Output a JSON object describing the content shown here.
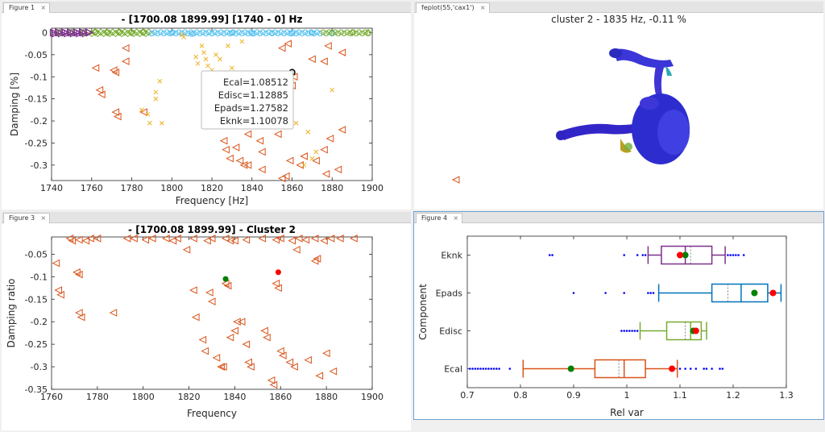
{
  "tabs": {
    "fig1": "Figure 1",
    "fig2": "feplot(55,'cax1')",
    "fig3": "Figure 3",
    "fig4": "Figure 4",
    "close": "×"
  },
  "colors": {
    "orange_tri": "#d95319",
    "yellow_x": "#edb120",
    "blue": "#4dbeee",
    "green": "#77ac30",
    "purple": "#7e2f8e",
    "box_blue": "#0072bd",
    "red_dot": "#ff0000",
    "green_dot": "#008000"
  },
  "fig1": {
    "title": "- [1700.08 1899.99] [1740 - 0] Hz",
    "xlabel": "Frequency [Hz]",
    "ylabel": "Damping [%]",
    "xticks": [
      "1740",
      "1760",
      "1780",
      "1800",
      "1820",
      "1840",
      "1860",
      "1880",
      "1900"
    ],
    "yticks": [
      "0",
      "-0.05",
      "-0.1",
      "-0.15",
      "-0.2",
      "-0.25",
      "-0.3"
    ],
    "tooltip": [
      "Ecal=1.08512",
      "Edisc=1.12885",
      "Epads=1.27582",
      "Eknk=1.10078"
    ]
  },
  "fig2": {
    "title": "cluster  2 - 1835 Hz, -0.11 %",
    "icons": {
      "model": "turbine-mesh-icon",
      "marker": "triangle-marker-icon"
    }
  },
  "fig3": {
    "title": "- [1700.08 1899.99] - Cluster 2",
    "xlabel": "Frequency",
    "ylabel": "Damping ratio",
    "xticks": [
      "1760",
      "1780",
      "1800",
      "1820",
      "1840",
      "1860",
      "1880",
      "1900"
    ],
    "yticks": [
      "-0.05",
      "-0.1",
      "-0.15",
      "-0.2",
      "-0.25",
      "-0.3",
      "-0.35"
    ]
  },
  "fig4": {
    "xlabel": "Rel var",
    "ylabel": "Component",
    "xticks": [
      "0.7",
      "0.8",
      "0.9",
      "1",
      "1.1",
      "1.2",
      "1.3"
    ],
    "categories": [
      "Eknk",
      "Epads",
      "Edisc",
      "Ecal"
    ]
  },
  "chart_data": [
    {
      "type": "scatter",
      "title": "- [1700.08 1899.99] [1740 - 0] Hz",
      "xlabel": "Frequency [Hz]",
      "ylabel": "Damping [%]",
      "xlim": [
        1740,
        1900
      ],
      "ylim": [
        -0.335,
        0.01
      ],
      "grid": false,
      "series": [
        {
          "marker": "triangle-left",
          "color": "#d95319",
          "points": [
            [
              1762,
              -0.08
            ],
            [
              1764,
              -0.13
            ],
            [
              1765,
              -0.14
            ],
            [
              1771,
              -0.085
            ],
            [
              1772,
              -0.09
            ],
            [
              1772,
              -0.18
            ],
            [
              1773,
              -0.19
            ],
            [
              1777,
              -0.035
            ],
            [
              1777,
              -0.065
            ],
            [
              1786,
              -0.18
            ],
            [
              1826,
              -0.245
            ],
            [
              1827,
              -0.265
            ],
            [
              1829,
              -0.285
            ],
            [
              1830,
              -0.155
            ],
            [
              1832,
              -0.26
            ],
            [
              1834,
              -0.29
            ],
            [
              1836,
              -0.3
            ],
            [
              1838,
              -0.3
            ],
            [
              1838,
              -0.23
            ],
            [
              1841,
              -0.11
            ],
            [
              1843,
              -0.2
            ],
            [
              1844,
              -0.245
            ],
            [
              1845,
              -0.27
            ],
            [
              1845,
              -0.31
            ],
            [
              1853,
              -0.2
            ],
            [
              1853,
              -0.23
            ],
            [
              1855,
              -0.33
            ],
            [
              1857,
              -0.325
            ],
            [
              1858,
              -0.13
            ],
            [
              1859,
              -0.29
            ],
            [
              1860,
              -0.12
            ],
            [
              1861,
              -0.1
            ],
            [
              1864,
              -0.3
            ],
            [
              1866,
              -0.28
            ],
            [
              1872,
              -0.29
            ],
            [
              1876,
              -0.265
            ],
            [
              1877,
              -0.32
            ],
            [
              1879,
              -0.24
            ],
            [
              1883,
              -0.31
            ],
            [
              1885,
              -0.22
            ],
            [
              1858,
              -0.025
            ],
            [
              1870,
              -0.06
            ],
            [
              1876,
              -0.065
            ],
            [
              1878,
              -0.03
            ],
            [
              1885,
              -0.045
            ],
            [
              1855,
              -0.035
            ]
          ]
        },
        {
          "marker": "x",
          "color": "#edb120",
          "points": [
            [
              1785,
              -0.175
            ],
            [
              1788,
              -0.185
            ],
            [
              1789,
              -0.205
            ],
            [
              1792,
              -0.135
            ],
            [
              1792,
              -0.15
            ],
            [
              1794,
              -0.11
            ],
            [
              1795,
              -0.205
            ],
            [
              1812,
              -0.055
            ],
            [
              1813,
              -0.07
            ],
            [
              1815,
              -0.03
            ],
            [
              1816,
              -0.045
            ],
            [
              1817,
              -0.06
            ],
            [
              1818,
              -0.075
            ],
            [
              1820,
              -0.085
            ],
            [
              1822,
              -0.05
            ],
            [
              1824,
              -0.06
            ],
            [
              1826,
              -0.09
            ],
            [
              1828,
              -0.03
            ],
            [
              1830,
              -0.08
            ],
            [
              1805,
              -0.005
            ],
            [
              1806,
              -0.01
            ],
            [
              1835,
              -0.02
            ],
            [
              1862,
              -0.205
            ],
            [
              1866,
              -0.3
            ],
            [
              1870,
              -0.285
            ],
            [
              1872,
              -0.27
            ],
            [
              1880,
              -0.13
            ],
            [
              1868,
              -0.225
            ]
          ]
        },
        {
          "marker": "circle",
          "color": "#4dbeee",
          "points": [
            [
              1790,
              -0.002
            ],
            [
              1800,
              -0.001
            ],
            [
              1810,
              -0.003
            ],
            [
              1820,
              -0.002
            ],
            [
              1830,
              -0.001
            ],
            [
              1840,
              -0.002
            ],
            [
              1850,
              -0.001
            ],
            [
              1860,
              -0.002
            ],
            [
              1870,
              -0.001
            ],
            [
              1880,
              -0.002
            ]
          ]
        },
        {
          "marker": "diamond",
          "color": "#77ac30",
          "points": [
            [
              1744,
              0.0
            ],
            [
              1750,
              0.001
            ],
            [
              1756,
              0.0
            ],
            [
              1762,
              0.001
            ],
            [
              1768,
              0.0
            ],
            [
              1774,
              0.001
            ],
            [
              1780,
              0.0
            ],
            [
              1786,
              0.001
            ],
            [
              1880,
              0.0
            ],
            [
              1890,
              0.0
            ],
            [
              1898,
              0.0
            ]
          ]
        },
        {
          "marker": "triangle-right",
          "color": "#7e2f8e",
          "points": [
            [
              1741,
              0.0
            ],
            [
              1744,
              0.0
            ],
            [
              1747,
              0.0
            ],
            [
              1750,
              0.0
            ],
            [
              1753,
              0.0
            ],
            [
              1756,
              0.0
            ],
            [
              1759,
              0.0
            ]
          ]
        },
        {
          "marker": "selected-circle",
          "color": "#000000",
          "points": [
            [
              1860,
              -0.09
            ]
          ]
        }
      ]
    },
    {
      "type": "scatter",
      "title": "- [1700.08 1899.99] - Cluster 2",
      "xlabel": "Frequency",
      "ylabel": "Damping ratio",
      "xlim": [
        1760,
        1900
      ],
      "ylim": [
        -0.35,
        -0.02
      ],
      "grid": false,
      "series": [
        {
          "marker": "triangle-left",
          "color": "#d95319",
          "points": [
            [
              1768,
              -0.015
            ],
            [
              1769,
              -0.02
            ],
            [
              1772,
              -0.018
            ],
            [
              1775,
              -0.02
            ],
            [
              1777,
              -0.015
            ],
            [
              1780,
              -0.015
            ],
            [
              1793,
              -0.015
            ],
            [
              1796,
              -0.015
            ],
            [
              1801,
              -0.018
            ],
            [
              1804,
              -0.015
            ],
            [
              1810,
              -0.015
            ],
            [
              1813,
              -0.02
            ],
            [
              1815,
              -0.015
            ],
            [
              1822,
              -0.015
            ],
            [
              1828,
              -0.02
            ],
            [
              1830,
              -0.015
            ],
            [
              1836,
              -0.015
            ],
            [
              1838,
              -0.02
            ],
            [
              1840,
              -0.02
            ],
            [
              1845,
              -0.018
            ],
            [
              1852,
              -0.015
            ],
            [
              1858,
              -0.018
            ],
            [
              1860,
              -0.015
            ],
            [
              1865,
              -0.02
            ],
            [
              1868,
              -0.015
            ],
            [
              1871,
              -0.018
            ],
            [
              1875,
              -0.015
            ],
            [
              1879,
              -0.02
            ],
            [
              1882,
              -0.015
            ],
            [
              1886,
              -0.015
            ],
            [
              1892,
              -0.015
            ],
            [
              1762,
              -0.07
            ],
            [
              1763,
              -0.13
            ],
            [
              1764,
              -0.14
            ],
            [
              1771,
              -0.09
            ],
            [
              1772,
              -0.095
            ],
            [
              1772,
              -0.18
            ],
            [
              1773,
              -0.19
            ],
            [
              1787,
              -0.18
            ],
            [
              1819,
              -0.04
            ],
            [
              1822,
              -0.13
            ],
            [
              1823,
              -0.19
            ],
            [
              1826,
              -0.24
            ],
            [
              1827,
              -0.265
            ],
            [
              1829,
              -0.135
            ],
            [
              1830,
              -0.155
            ],
            [
              1832,
              -0.28
            ],
            [
              1834,
              -0.3
            ],
            [
              1835,
              -0.3
            ],
            [
              1836,
              -0.115
            ],
            [
              1837,
              -0.12
            ],
            [
              1838,
              -0.235
            ],
            [
              1840,
              -0.22
            ],
            [
              1841,
              -0.2
            ],
            [
              1843,
              -0.2
            ],
            [
              1845,
              -0.25
            ],
            [
              1846,
              -0.29
            ],
            [
              1847,
              -0.3
            ],
            [
              1853,
              -0.22
            ],
            [
              1854,
              -0.235
            ],
            [
              1856,
              -0.33
            ],
            [
              1857,
              -0.34
            ],
            [
              1858,
              -0.115
            ],
            [
              1859,
              -0.125
            ],
            [
              1860,
              -0.265
            ],
            [
              1861,
              -0.275
            ],
            [
              1864,
              -0.29
            ],
            [
              1866,
              -0.3
            ],
            [
              1867,
              -0.04
            ],
            [
              1872,
              -0.285
            ],
            [
              1875,
              -0.065
            ],
            [
              1876,
              -0.06
            ],
            [
              1877,
              -0.32
            ],
            [
              1880,
              -0.27
            ],
            [
              1883,
              -0.31
            ]
          ]
        },
        {
          "marker": "filled-circle",
          "color": "#008000",
          "points": [
            [
              1836,
              -0.105
            ]
          ]
        },
        {
          "marker": "filled-circle",
          "color": "#ff0000",
          "points": [
            [
              1859,
              -0.09
            ]
          ]
        }
      ]
    },
    {
      "type": "boxplot",
      "xlabel": "Rel var",
      "ylabel": "Component",
      "xlim": [
        0.7,
        1.3
      ],
      "categories": [
        "Eknk",
        "Epads",
        "Edisc",
        "Ecal"
      ],
      "boxes": [
        {
          "name": "Eknk",
          "color": "#7e2f8e",
          "whisker_low": 1.04,
          "q1": 1.065,
          "median": 1.11,
          "q3": 1.16,
          "whisker_high": 1.185,
          "mean": 1.12,
          "outliers": [
            0.855,
            0.86,
            0.995,
            1.02,
            1.03,
            1.035,
            1.19,
            1.195,
            1.2,
            1.205,
            1.21,
            1.22
          ],
          "red": 1.1,
          "green": 1.11
        },
        {
          "name": "Epads",
          "color": "#0072bd",
          "whisker_low": 1.06,
          "q1": 1.16,
          "median": 1.215,
          "q3": 1.265,
          "whisker_high": 1.29,
          "mean": 1.19,
          "outliers": [
            0.9,
            0.96,
            0.995,
            1.04,
            1.045,
            1.05
          ],
          "red": 1.275,
          "green": 1.24
        },
        {
          "name": "Edisc",
          "color": "#77ac30",
          "whisker_low": 1.025,
          "q1": 1.075,
          "median": 1.12,
          "q3": 1.14,
          "whisker_high": 1.15,
          "mean": 1.11,
          "outliers": [
            0.99,
            0.995,
            1.0,
            1.005,
            1.01,
            1.015,
            1.02
          ],
          "red": 1.13,
          "green": 1.125
        },
        {
          "name": "Ecal",
          "color": "#d95319",
          "whisker_low": 0.805,
          "q1": 0.94,
          "median": 0.995,
          "q3": 1.035,
          "whisker_high": 1.095,
          "mean": 0.985,
          "outliers": [
            0.705,
            0.71,
            0.715,
            0.72,
            0.725,
            0.73,
            0.735,
            0.74,
            0.745,
            0.75,
            0.755,
            0.76,
            0.78,
            1.1,
            1.11,
            1.12,
            1.13,
            1.145,
            1.15,
            1.16,
            1.175,
            1.18
          ],
          "red": 1.085,
          "green": 0.895
        }
      ]
    }
  ]
}
